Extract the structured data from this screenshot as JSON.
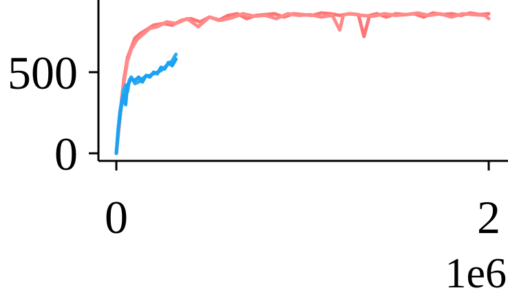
{
  "chart_data": {
    "type": "line",
    "title": "",
    "xlabel": "",
    "ylabel": "",
    "x_scale_label": "1e6",
    "xlim": [
      -0.04,
      2.1
    ],
    "ylim": [
      -40,
      980
    ],
    "x_ticks": [
      0,
      2
    ],
    "x_tick_labels": [
      "0",
      "2"
    ],
    "y_ticks": [
      0,
      500
    ],
    "y_tick_labels": [
      "0",
      "500"
    ],
    "grid": false,
    "legend": "none",
    "series": [
      {
        "color": "#ff7575",
        "x": [
          0.0,
          0.02,
          0.04,
          0.06,
          0.08,
          0.1,
          0.13,
          0.16,
          0.2,
          0.25,
          0.3,
          0.35,
          0.4,
          0.45,
          0.5,
          0.55,
          0.6,
          0.65,
          0.7,
          0.75,
          0.8,
          0.85,
          0.9,
          0.95,
          1.0,
          1.05,
          1.1,
          1.15,
          1.2,
          1.25,
          1.3,
          1.33,
          1.36,
          1.4,
          1.45,
          1.5,
          1.55,
          1.6,
          1.65,
          1.7,
          1.75,
          1.8,
          1.85,
          1.9,
          1.95,
          2.0
        ],
        "values": [
          0,
          240,
          450,
          590,
          650,
          710,
          740,
          760,
          790,
          800,
          790,
          820,
          830,
          810,
          840,
          820,
          850,
          860,
          830,
          850,
          855,
          860,
          840,
          860,
          855,
          850,
          865,
          860,
          850,
          860,
          855,
          720,
          850,
          860,
          840,
          860,
          855,
          860,
          840,
          865,
          855,
          860,
          850,
          865,
          855,
          860
        ]
      },
      {
        "color": "#ff8a8a",
        "x": [
          0.0,
          0.02,
          0.04,
          0.06,
          0.08,
          0.11,
          0.14,
          0.18,
          0.22,
          0.27,
          0.32,
          0.38,
          0.44,
          0.5,
          0.56,
          0.62,
          0.68,
          0.74,
          0.8,
          0.86,
          0.92,
          0.98,
          1.04,
          1.1,
          1.16,
          1.2,
          1.22,
          1.26,
          1.32,
          1.38,
          1.44,
          1.5,
          1.56,
          1.62,
          1.68,
          1.74,
          1.8,
          1.86,
          1.92,
          1.98,
          2.0
        ],
        "values": [
          0,
          220,
          430,
          570,
          640,
          700,
          730,
          770,
          780,
          810,
          800,
          830,
          780,
          840,
          820,
          835,
          860,
          845,
          850,
          830,
          860,
          850,
          855,
          840,
          850,
          760,
          855,
          860,
          850,
          845,
          860,
          850,
          855,
          865,
          850,
          860,
          840,
          860,
          855,
          850,
          830
        ]
      },
      {
        "color": "#29abf0",
        "x": [
          0.0,
          0.01,
          0.02,
          0.03,
          0.04,
          0.05,
          0.06,
          0.07,
          0.08,
          0.1,
          0.12,
          0.14,
          0.16,
          0.18,
          0.2,
          0.22,
          0.24,
          0.26,
          0.28,
          0.3,
          0.32
        ],
        "values": [
          0,
          150,
          260,
          330,
          390,
          420,
          380,
          450,
          470,
          430,
          440,
          460,
          475,
          480,
          490,
          500,
          510,
          530,
          550,
          570,
          610
        ]
      },
      {
        "color": "#1da1f2",
        "x": [
          0.0,
          0.01,
          0.02,
          0.03,
          0.04,
          0.05,
          0.06,
          0.07,
          0.08,
          0.1,
          0.12,
          0.14,
          0.16,
          0.18,
          0.2,
          0.22,
          0.24,
          0.26,
          0.28,
          0.3,
          0.32
        ],
        "values": [
          0,
          140,
          240,
          310,
          360,
          300,
          420,
          440,
          460,
          450,
          470,
          440,
          480,
          470,
          500,
          490,
          530,
          520,
          560,
          540,
          580
        ]
      }
    ]
  }
}
